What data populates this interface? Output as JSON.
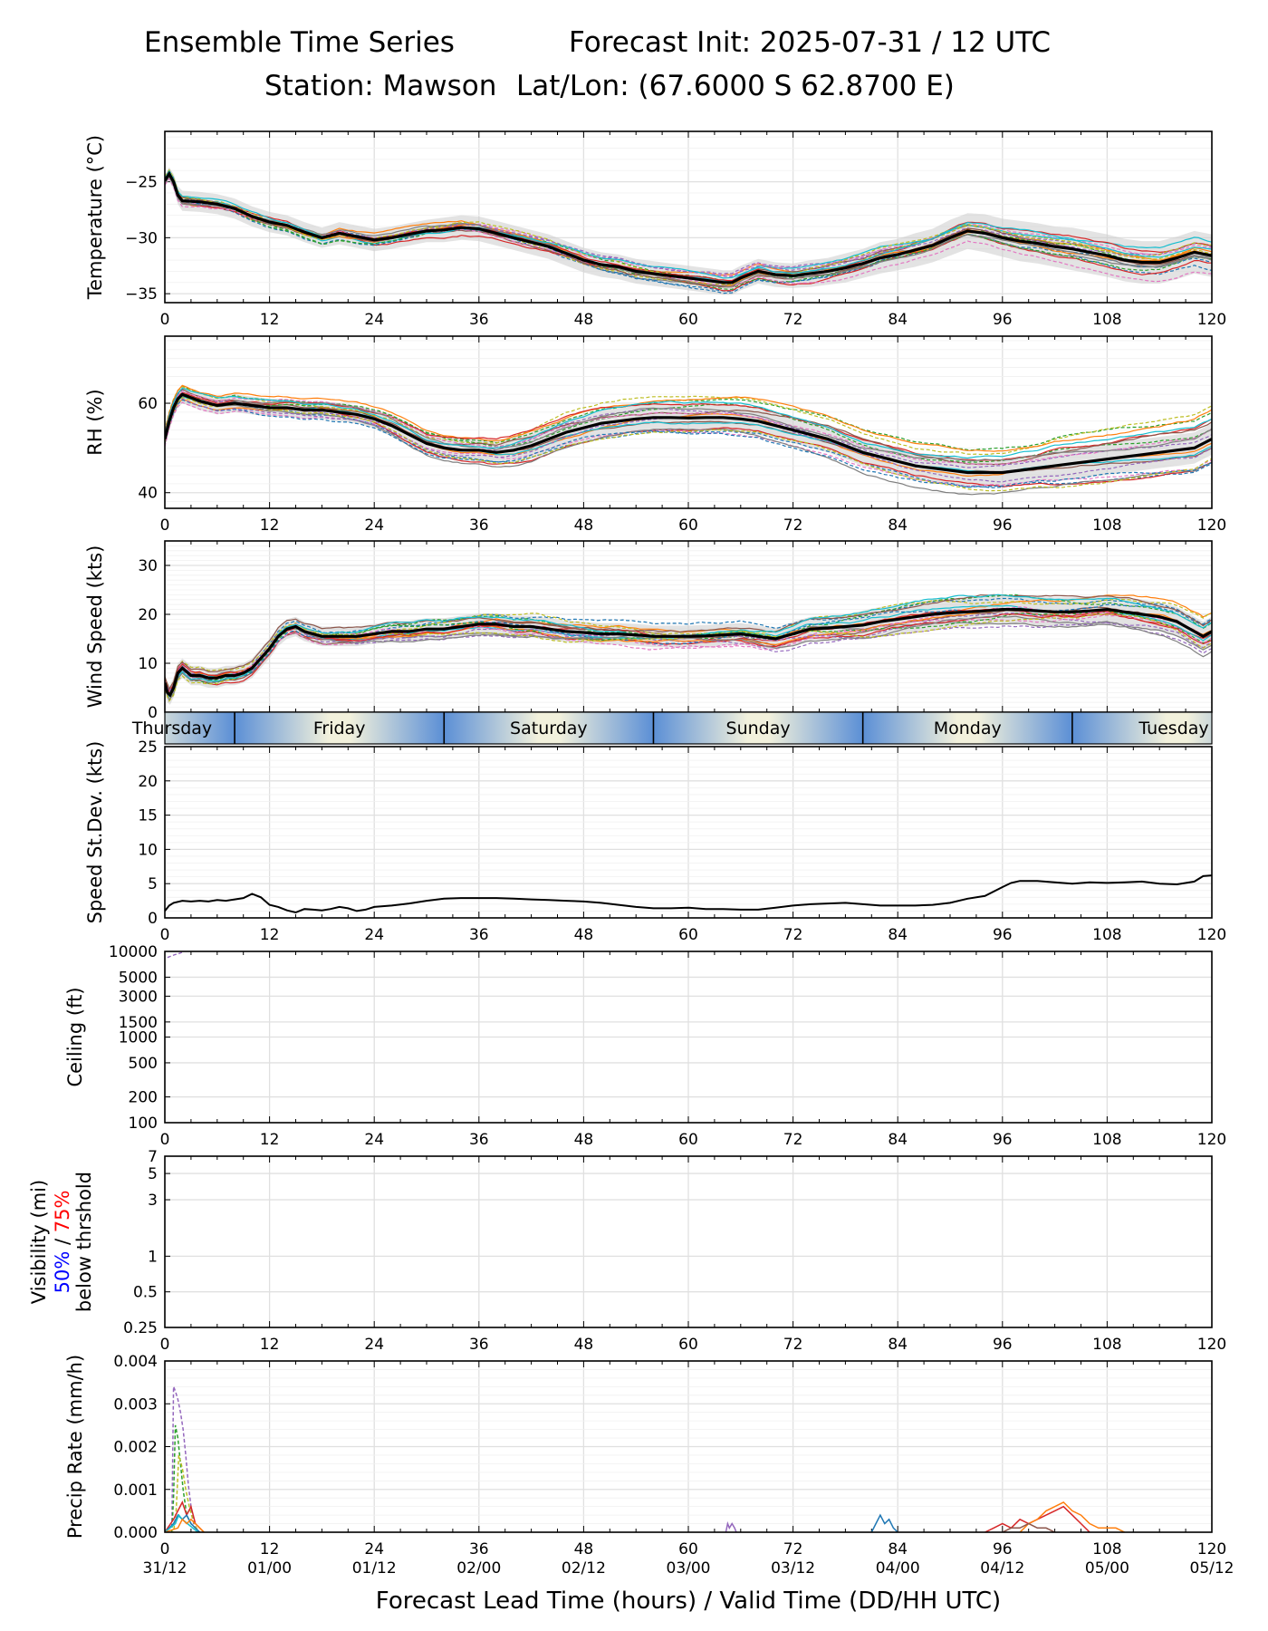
{
  "header": {
    "title_left": "Ensemble Time Series",
    "title_right": "Forecast Init: 2025-07-31 / 12 UTC",
    "station": "Station: Mawson",
    "latlon": "Lat/Lon: (67.6000 S 62.8700 E)"
  },
  "colors": {
    "mean": "#000000",
    "spread_band": "#cccccc",
    "grid": "#e0e0e0",
    "members": [
      "#1f77b4",
      "#ff7f0e",
      "#2ca02c",
      "#d62728",
      "#9467bd",
      "#8c564b",
      "#e377c2",
      "#7f7f7f",
      "#bcbd22",
      "#17becf"
    ],
    "day_band_blue": "#5b8fd6",
    "day_band_cream": "#f2f1dc",
    "vis_50": "#0000ff",
    "vis_75": "#ff0000"
  },
  "x_ticks": [
    "0",
    "12",
    "24",
    "36",
    "48",
    "60",
    "72",
    "84",
    "96",
    "108",
    "120"
  ],
  "valid_times": [
    "31/12",
    "01/00",
    "01/12",
    "02/00",
    "02/12",
    "03/00",
    "03/12",
    "04/00",
    "04/12",
    "05/00",
    "05/12"
  ],
  "xlabel": "Forecast Lead Time (hours) / Valid Time (DD/HH UTC)",
  "day_band": {
    "days": [
      "Thursday",
      "Friday",
      "Saturday",
      "Sunday",
      "Monday",
      "Tuesday"
    ],
    "day_starts_h": [
      -16,
      8,
      32,
      56,
      80,
      104
    ]
  },
  "chart_data": [
    {
      "id": "temperature",
      "type": "line",
      "ylabel": "Temperature (°C)",
      "xlim": [
        0,
        120
      ],
      "ylim": [
        -35.8,
        -20.5
      ],
      "yticks": [
        -35,
        -30,
        -25
      ],
      "ytick_labels": [
        "−35",
        "−30",
        "−25"
      ],
      "mean_x": [
        0,
        0.5,
        1,
        1.5,
        2,
        4,
        6,
        8,
        10,
        12,
        14,
        16,
        18,
        20,
        22,
        24,
        26,
        28,
        30,
        32,
        34,
        36,
        38,
        40,
        42,
        44,
        46,
        48,
        50,
        52,
        54,
        56,
        58,
        60,
        62,
        64,
        65,
        66,
        68,
        70,
        72,
        74,
        76,
        78,
        80,
        82,
        84,
        86,
        88,
        90,
        92,
        94,
        96,
        98,
        100,
        102,
        104,
        106,
        108,
        110,
        112,
        114,
        116,
        118,
        120
      ],
      "mean_y": [
        -24.9,
        -24.3,
        -25.0,
        -26.2,
        -26.7,
        -26.8,
        -27.0,
        -27.4,
        -28.1,
        -28.6,
        -28.9,
        -29.5,
        -30.0,
        -29.6,
        -29.9,
        -30.2,
        -30.0,
        -29.7,
        -29.4,
        -29.3,
        -29.1,
        -29.2,
        -29.6,
        -30.0,
        -30.4,
        -30.8,
        -31.4,
        -32.0,
        -32.4,
        -32.6,
        -33.0,
        -33.2,
        -33.4,
        -33.6,
        -33.8,
        -34.0,
        -34.0,
        -33.6,
        -33.0,
        -33.3,
        -33.4,
        -33.2,
        -33.0,
        -32.7,
        -32.3,
        -31.8,
        -31.5,
        -31.1,
        -30.7,
        -30.0,
        -29.4,
        -29.6,
        -30.0,
        -30.3,
        -30.5,
        -30.8,
        -31.0,
        -31.3,
        -31.6,
        -32.0,
        -32.2,
        -32.2,
        -31.8,
        -31.3,
        -31.6
      ],
      "spread": [
        0.5,
        0.6,
        0.7,
        0.8,
        0.9,
        0.9,
        0.9,
        0.9,
        0.9,
        0.9,
        0.9,
        0.9,
        0.9,
        1.0,
        1.0,
        1.0,
        1.0,
        1.0,
        1.0,
        1.1,
        1.1,
        1.1,
        1.1,
        1.1,
        1.1,
        1.1,
        1.1,
        1.1,
        1.1,
        1.1,
        1.1,
        1.1,
        1.1,
        1.1,
        1.1,
        1.1,
        1.1,
        1.1,
        1.1,
        1.1,
        1.1,
        1.2,
        1.2,
        1.3,
        1.3,
        1.4,
        1.4,
        1.5,
        1.5,
        1.6,
        1.6,
        1.7,
        1.7,
        1.8,
        1.8,
        1.8,
        1.9,
        1.9,
        1.9,
        1.9,
        1.9,
        1.9,
        1.9,
        1.9,
        1.9
      ],
      "members": 20,
      "member_noise": 1.3,
      "member_wiggle": 0.5
    },
    {
      "id": "rh",
      "type": "line",
      "ylabel": "RH (%)",
      "xlim": [
        0,
        120
      ],
      "ylim": [
        36.5,
        75
      ],
      "yticks": [
        40,
        60
      ],
      "ytick_labels": [
        "40",
        "60"
      ],
      "mean_x": [
        0,
        0.5,
        1,
        1.5,
        2,
        4,
        6,
        8,
        10,
        12,
        14,
        16,
        18,
        20,
        22,
        24,
        26,
        28,
        30,
        32,
        34,
        36,
        38,
        40,
        42,
        44,
        46,
        48,
        50,
        52,
        54,
        56,
        58,
        60,
        62,
        64,
        66,
        68,
        70,
        72,
        74,
        76,
        78,
        80,
        82,
        84,
        86,
        88,
        90,
        92,
        94,
        96,
        98,
        100,
        102,
        104,
        106,
        108,
        110,
        112,
        114,
        116,
        118,
        120
      ],
      "mean_y": [
        52,
        56,
        59,
        61,
        62,
        60.5,
        59.5,
        60,
        59.5,
        59,
        59,
        58.5,
        58.5,
        58,
        57.5,
        56.5,
        55,
        53,
        51,
        50,
        49.5,
        49.5,
        49,
        49.5,
        50.5,
        52,
        53.5,
        54.5,
        55.5,
        56,
        56.5,
        56.8,
        56.8,
        56.7,
        56.8,
        56.8,
        56.5,
        56,
        55,
        54,
        53,
        52,
        50.5,
        49,
        48,
        47,
        46,
        45.5,
        45,
        44.5,
        44.5,
        44.5,
        45,
        45.5,
        46,
        46.5,
        47,
        47.5,
        48,
        48.5,
        49,
        49.5,
        50,
        52,
        51.5
      ],
      "spread": [
        2,
        2,
        2,
        2,
        2,
        2,
        2,
        2,
        2,
        2,
        2,
        2,
        2,
        2,
        2,
        2,
        2.5,
        2.5,
        2.5,
        2.5,
        2.5,
        2.5,
        2.5,
        3,
        3,
        3,
        3,
        3,
        3,
        3,
        3,
        3,
        3,
        3,
        3,
        3,
        3,
        3,
        3,
        3,
        3,
        3,
        3,
        3,
        3,
        3,
        3,
        3,
        3,
        3,
        3,
        3,
        3,
        3,
        3.5,
        3.5,
        3.5,
        3.5,
        3.5,
        3.5,
        3.5,
        3.5,
        3.5,
        3.5,
        3.5
      ],
      "members": 20,
      "member_noise": 4.5,
      "member_wiggle": 1.2
    },
    {
      "id": "wind_speed",
      "type": "line",
      "ylabel": "Wind Speed (kts)",
      "xlim": [
        0,
        120
      ],
      "ylim": [
        0,
        35
      ],
      "yticks": [
        0,
        10,
        20,
        30
      ],
      "ytick_labels": [
        "0",
        "10",
        "20",
        "30"
      ],
      "mean_x": [
        0,
        0.3,
        0.6,
        1,
        1.5,
        2,
        3,
        4,
        5,
        6,
        7,
        8,
        9,
        10,
        11,
        12,
        13,
        14,
        15,
        16,
        17,
        18,
        20,
        22,
        24,
        26,
        28,
        30,
        32,
        34,
        36,
        38,
        40,
        42,
        44,
        46,
        48,
        50,
        52,
        54,
        56,
        58,
        60,
        62,
        64,
        66,
        68,
        70,
        72,
        74,
        76,
        78,
        80,
        82,
        84,
        86,
        88,
        90,
        92,
        94,
        96,
        98,
        100,
        102,
        104,
        106,
        108,
        110,
        112,
        114,
        116,
        117,
        118,
        119,
        120
      ],
      "mean_y": [
        6,
        4,
        3.5,
        5,
        8,
        9,
        7.5,
        7.5,
        7,
        7,
        7.5,
        7.5,
        8,
        9,
        11,
        13,
        15.5,
        17,
        17.5,
        16.5,
        16,
        15.5,
        15.5,
        15.5,
        16,
        16.5,
        16.5,
        17,
        17,
        17.5,
        18,
        18,
        17.5,
        17.5,
        17,
        16.5,
        16.3,
        16,
        16,
        15.8,
        15.5,
        15.5,
        15.5,
        15.6,
        15.8,
        16,
        15.5,
        15,
        16,
        17,
        17.2,
        17.5,
        17.8,
        18.5,
        19,
        19.5,
        20,
        20.3,
        20.5,
        20.7,
        21,
        21,
        20.7,
        20.5,
        20.5,
        20.7,
        21,
        20.5,
        20,
        19.5,
        18.5,
        17.5,
        16.5,
        15.5,
        16.5
      ],
      "spread": [
        2,
        2,
        2,
        2,
        2,
        2,
        2,
        2,
        2,
        2,
        2,
        2,
        2,
        2,
        2,
        2,
        2,
        2,
        2,
        2,
        2,
        2,
        2,
        2,
        2,
        2.2,
        2.2,
        2.2,
        2.2,
        2.2,
        2.2,
        2.2,
        2.2,
        2.2,
        2.2,
        2.2,
        2.2,
        2.2,
        2.2,
        2.2,
        2.2,
        2.2,
        2.2,
        2.2,
        2.2,
        2.2,
        2.2,
        2.2,
        2.5,
        2.5,
        2.5,
        2.5,
        3,
        3,
        3,
        3,
        3,
        3,
        3,
        3,
        3,
        3,
        3,
        3,
        3,
        3,
        3,
        3,
        3,
        3,
        3,
        3,
        3,
        3,
        3
      ],
      "members": 20,
      "member_noise": 2.5,
      "member_wiggle": 1.5
    },
    {
      "id": "speed_stdev",
      "type": "line",
      "ylabel": "Speed St.Dev. (kts)",
      "xlim": [
        0,
        120
      ],
      "ylim": [
        0,
        25
      ],
      "yticks": [
        0,
        5,
        10,
        15,
        20,
        25
      ],
      "ytick_labels": [
        "0",
        "5",
        "10",
        "15",
        "20",
        "25"
      ],
      "x": [
        0,
        0.5,
        1,
        2,
        3,
        4,
        5,
        6,
        7,
        8,
        9,
        10,
        11,
        12,
        13,
        14,
        15,
        16,
        17,
        18,
        19,
        20,
        21,
        22,
        23,
        24,
        25,
        26,
        28,
        30,
        32,
        34,
        36,
        38,
        40,
        42,
        44,
        46,
        48,
        50,
        52,
        54,
        56,
        58,
        60,
        62,
        64,
        66,
        68,
        70,
        72,
        74,
        76,
        78,
        80,
        82,
        84,
        86,
        88,
        90,
        92,
        94,
        96,
        97,
        98,
        100,
        102,
        104,
        106,
        108,
        110,
        112,
        114,
        116,
        118,
        119,
        120
      ],
      "y": [
        1,
        1.8,
        2.2,
        2.5,
        2.4,
        2.5,
        2.4,
        2.6,
        2.5,
        2.7,
        2.9,
        3.5,
        3.0,
        1.9,
        1.6,
        1.1,
        0.8,
        1.3,
        1.2,
        1.1,
        1.3,
        1.6,
        1.4,
        1.0,
        1.2,
        1.6,
        1.7,
        1.8,
        2.1,
        2.5,
        2.8,
        2.9,
        2.9,
        2.9,
        2.8,
        2.7,
        2.6,
        2.5,
        2.4,
        2.2,
        1.9,
        1.6,
        1.4,
        1.4,
        1.5,
        1.3,
        1.3,
        1.2,
        1.2,
        1.5,
        1.8,
        2.0,
        2.1,
        2.2,
        2.0,
        1.8,
        1.8,
        1.8,
        1.9,
        2.2,
        2.8,
        3.2,
        4.5,
        5.1,
        5.4,
        5.4,
        5.2,
        5.0,
        5.2,
        5.1,
        5.2,
        5.3,
        5.0,
        4.9,
        5.3,
        6.1,
        6.2
      ]
    },
    {
      "id": "ceiling",
      "type": "line",
      "ylabel": "Ceiling (ft)",
      "xlim": [
        0,
        120
      ],
      "scale": "log",
      "ylim": [
        100,
        10000
      ],
      "yticks": [
        100,
        200,
        500,
        1000,
        1500,
        3000,
        5000,
        10000
      ],
      "ytick_labels": [
        "100",
        "200",
        "500",
        "1000",
        "1500",
        "3000",
        "5000",
        "10000"
      ],
      "x": [
        0.3,
        0.7,
        1.2,
        1.7,
        2.0
      ],
      "y": [
        8500,
        8800,
        9200,
        9500,
        9800
      ]
    },
    {
      "id": "visibility",
      "type": "line",
      "ylabel": "Visibility (mi)",
      "ylabel_50": "50%",
      "ylabel_sep": " / ",
      "ylabel_75": "75%",
      "ylabel_sub": "below thrshold",
      "xlim": [
        0,
        120
      ],
      "scale": "log",
      "ylim": [
        0.25,
        7
      ],
      "yticks": [
        0.25,
        0.5,
        1,
        3,
        5,
        7
      ],
      "ytick_labels": [
        "0.25",
        "0.5",
        "1",
        "3",
        "5",
        "7"
      ],
      "series": []
    },
    {
      "id": "precip",
      "type": "line",
      "ylabel": "Precip Rate (mm/h)",
      "xlim": [
        0,
        120
      ],
      "ylim": [
        0,
        0.004
      ],
      "yticks": [
        0,
        0.001,
        0.002,
        0.003,
        0.004
      ],
      "ytick_labels": [
        "0.000",
        "0.001",
        "0.002",
        "0.003",
        "0.004"
      ],
      "series": [
        {
          "color": "#9467bd",
          "dash": true,
          "x": [
            0,
            0.8,
            1,
            1.2,
            1.5,
            1.8,
            2.1,
            2.4,
            2.7,
            3,
            3.3,
            3.6,
            4
          ],
          "y": [
            0,
            0,
            0.0034,
            0.0033,
            0.0031,
            0.0028,
            0.0024,
            0.0018,
            0.0011,
            0.0006,
            0.0002,
            0.0001,
            0
          ]
        },
        {
          "color": "#2ca02c",
          "dash": true,
          "x": [
            0,
            0.8,
            1,
            1.2,
            1.5,
            1.8,
            2.1,
            2.5,
            3,
            3.5,
            4
          ],
          "y": [
            0,
            0,
            0.0008,
            0.0025,
            0.0022,
            0.0016,
            0.001,
            0.0004,
            0.0002,
            0.0001,
            0
          ]
        },
        {
          "color": "#bcbd22",
          "dash": true,
          "x": [
            0,
            1,
            1.3,
            1.6,
            2,
            2.4,
            2.8,
            3.2,
            3.6,
            4
          ],
          "y": [
            0,
            0,
            0.0005,
            0.0018,
            0.0015,
            0.001,
            0.0006,
            0.0003,
            0.0001,
            0
          ]
        },
        {
          "color": "#d62728",
          "dash": false,
          "x": [
            0,
            1,
            1.5,
            2,
            2.5,
            3,
            3.5,
            4,
            4.5
          ],
          "y": [
            0,
            0.0003,
            0.0005,
            0.0007,
            0.0004,
            0.0006,
            0.0002,
            0.0001,
            0
          ]
        },
        {
          "color": "#1f77b4",
          "dash": false,
          "x": [
            0,
            1,
            1.5,
            2,
            2.5,
            3,
            3.5,
            4
          ],
          "y": [
            0,
            0.0002,
            0.0004,
            0.0003,
            0.0004,
            0.0002,
            0.0001,
            0
          ]
        },
        {
          "color": "#17becf",
          "dash": false,
          "x": [
            0,
            1.2,
            1.6,
            2,
            2.6,
            3.2,
            3.8
          ],
          "y": [
            0,
            0.0002,
            0.0004,
            0.0003,
            0.0002,
            0.0001,
            0
          ]
        },
        {
          "color": "#ff7f0e",
          "dash": false,
          "x": [
            0,
            1.5,
            2,
            2.5,
            3,
            3.5,
            4,
            4.5
          ],
          "y": [
            0,
            0.0001,
            0.0003,
            0.0002,
            0.0003,
            0.0002,
            0.0001,
            0
          ]
        },
        {
          "color": "#9467bd",
          "dash": false,
          "x": [
            64.3,
            64.5,
            64.7,
            65,
            65.3,
            65.5
          ],
          "y": [
            0,
            0.0002,
            0.0001,
            0.0002,
            0.0001,
            0
          ]
        },
        {
          "color": "#1f77b4",
          "dash": false,
          "x": [
            81,
            81.5,
            82,
            82.5,
            83,
            83.5,
            84
          ],
          "y": [
            0,
            0.0002,
            0.0004,
            0.0002,
            0.0003,
            0.0001,
            0
          ]
        },
        {
          "color": "#d62728",
          "dash": false,
          "x": [
            94,
            95,
            96,
            97,
            98,
            99,
            100,
            101,
            102,
            103,
            104,
            105,
            106
          ],
          "y": [
            0,
            0.0001,
            0.0002,
            0.0001,
            0.0003,
            0.0002,
            0.0003,
            0.0004,
            0.0005,
            0.0006,
            0.0004,
            0.0002,
            0
          ]
        },
        {
          "color": "#ff7f0e",
          "dash": false,
          "x": [
            98,
            99,
            100,
            101,
            102,
            103,
            104,
            105,
            106,
            107,
            108,
            109,
            110
          ],
          "y": [
            0,
            0.0002,
            0.0003,
            0.0005,
            0.0006,
            0.0007,
            0.0005,
            0.0004,
            0.0002,
            0.0001,
            0.0001,
            0.0001,
            0
          ]
        },
        {
          "color": "#8c564b",
          "dash": false,
          "x": [
            96,
            97,
            98,
            99,
            100,
            101,
            102
          ],
          "y": [
            0,
            0.0001,
            0.0001,
            0.0002,
            0.0001,
            0.0001,
            0
          ]
        }
      ]
    }
  ]
}
